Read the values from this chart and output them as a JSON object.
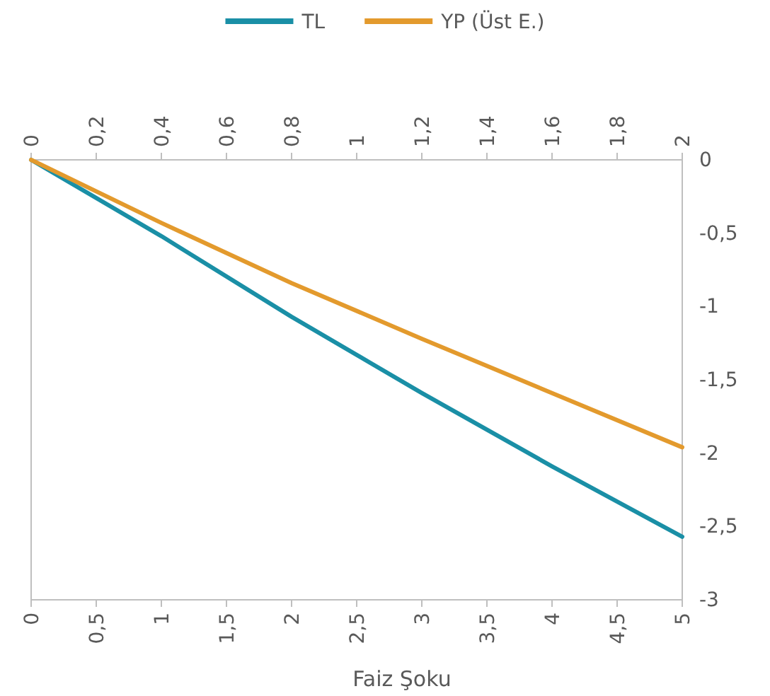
{
  "chart_data": {
    "type": "line",
    "xlabel": "Faiz Şoku",
    "legend": "top",
    "grid": false,
    "xlim": [
      0,
      5
    ],
    "xticks": [
      0,
      {
        "value": 0.5,
        "label": "0,5"
      },
      1,
      {
        "value": 1.5,
        "label": "1,5"
      },
      2,
      {
        "value": 2.5,
        "label": "2,5"
      },
      3,
      {
        "value": 3.5,
        "label": "3,5"
      },
      4,
      {
        "value": 4.5,
        "label": "4,5"
      },
      5
    ],
    "x2lim": [
      0,
      2
    ],
    "x2ticks": [
      0,
      {
        "value": 0.2,
        "label": "0,2"
      },
      {
        "value": 0.4,
        "label": "0,4"
      },
      {
        "value": 0.6,
        "label": "0,6"
      },
      {
        "value": 0.8,
        "label": "0,8"
      },
      1,
      {
        "value": 1.2,
        "label": "1,2"
      },
      {
        "value": 1.4,
        "label": "1,4"
      },
      {
        "value": 1.6,
        "label": "1,6"
      },
      {
        "value": 1.8,
        "label": "1,8"
      },
      2
    ],
    "ylim": [
      -3,
      0
    ],
    "yticks": [
      0,
      {
        "value": -0.5,
        "label": "-0,5"
      },
      -1,
      {
        "value": -1.5,
        "label": "-1,5"
      },
      -2,
      {
        "value": -2.5,
        "label": "-2,5"
      },
      -3
    ],
    "series": [
      {
        "name": "TL",
        "color": "#1a8fa6",
        "x": [
          0,
          1,
          2,
          3,
          4,
          5
        ],
        "values": [
          0,
          -0.52,
          -1.07,
          -1.59,
          -2.09,
          -2.57
        ]
      },
      {
        "name": "YP (Üst  E.)",
        "color": "#e39a2d",
        "axis": "x2",
        "x": [
          0,
          0.4,
          0.8,
          1.2,
          1.6,
          2
        ],
        "values": [
          0,
          -0.43,
          -0.84,
          -1.22,
          -1.59,
          -1.96
        ]
      }
    ]
  }
}
